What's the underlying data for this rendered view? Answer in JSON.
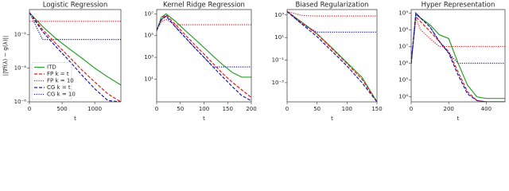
{
  "chart_data": [
    {
      "type": "line",
      "title": "Logistic Regression",
      "xlabel": "t",
      "ylabel": "||∇f(λ) − g(λ)||",
      "ylog": true,
      "legend": "lower left",
      "x": [
        0,
        200,
        400,
        600,
        800,
        1000,
        1200,
        1400
      ],
      "xlim": [
        0,
        1400
      ],
      "xticks": [
        0,
        500,
        1000
      ],
      "ylim": [
        1e-06,
        0.3
      ],
      "yticks": [
        {
          "value": 1e-06,
          "label": "10⁻⁶"
        },
        {
          "value": 0.0001,
          "label": "10⁻⁴"
        },
        {
          "value": 0.01,
          "label": "10⁻²"
        }
      ],
      "series": [
        {
          "name": "ITD",
          "color": "#2ca02c",
          "dash": "solid",
          "values": [
            0.2,
            0.03,
            0.006,
            0.0015,
            0.0004,
            0.0001,
            3e-05,
            1e-05
          ]
        },
        {
          "name": "FP k = t",
          "color": "#e41a1c",
          "dash": "dashed",
          "values": [
            0.2,
            0.02,
            0.003,
            0.0005,
            8e-05,
            1.5e-05,
            3e-06,
            1e-06
          ]
        },
        {
          "name": "FP k = 10",
          "color": "#e41a1c",
          "dash": "dotted",
          "values": [
            0.06,
            0.06,
            0.06,
            0.06,
            0.06,
            0.06,
            0.06,
            0.06
          ]
        },
        {
          "name": "CG k = t",
          "color": "#1a1aa6",
          "dash": "dashed",
          "values": [
            0.2,
            0.015,
            0.002,
            0.0003,
            4e-05,
            6e-06,
            1.2e-06,
            1e-06
          ]
        },
        {
          "name": "CG k = 10",
          "color": "#1a1aa6",
          "dash": "dotted",
          "values": [
            0.2,
            0.005,
            0.005,
            0.005,
            0.005,
            0.005,
            0.005,
            0.005
          ]
        }
      ]
    },
    {
      "type": "line",
      "title": "Kernel Ridge Regression",
      "xlabel": "t",
      "ylog": true,
      "x": [
        0,
        10,
        20,
        40,
        60,
        80,
        100,
        120,
        140,
        160,
        180,
        200
      ],
      "xlim": [
        0,
        200
      ],
      "xticks": [
        0,
        50,
        100,
        150,
        200
      ],
      "ylim": [
        0.08,
        25000000
      ],
      "yticks": [
        {
          "value": 10,
          "label": "10¹"
        },
        {
          "value": 1000,
          "label": "10³"
        },
        {
          "value": 100000,
          "label": "10⁵"
        },
        {
          "value": 10000000,
          "label": "10⁷"
        }
      ],
      "series": [
        {
          "color": "#2ca02c",
          "dash": "solid",
          "values": [
            300000,
            5000000,
            10000000,
            2000000,
            300000,
            50000,
            8000,
            1200,
            200,
            40,
            15,
            15
          ]
        },
        {
          "color": "#e41a1c",
          "dash": "dashed",
          "values": [
            300000,
            4000000,
            8000000,
            1000000,
            120000,
            15000,
            2000,
            250,
            30,
            5,
            1,
            0.2
          ]
        },
        {
          "color": "#e41a1c",
          "dash": "dotted",
          "values": [
            300000,
            2000000,
            3000000,
            1000000,
            1000000,
            1000000,
            1000000,
            1000000,
            1000000,
            1000000,
            1000000,
            1000000
          ]
        },
        {
          "color": "#1a1aa6",
          "dash": "dashed",
          "values": [
            300000,
            3000000,
            6000000,
            600000,
            70000,
            8000,
            1000,
            120,
            15,
            2,
            0.3,
            0.1
          ]
        },
        {
          "color": "#1a1aa6",
          "dash": "dotted",
          "values": [
            300000,
            3000000,
            6000000,
            600000,
            70000,
            8000,
            1000,
            130,
            130,
            130,
            130,
            130
          ]
        }
      ]
    },
    {
      "type": "line",
      "title": "Biased Regularization",
      "xlabel": "t",
      "ylog": true,
      "x": [
        0,
        25,
        50,
        75,
        100,
        125,
        150
      ],
      "xlim": [
        0,
        150
      ],
      "xticks": [
        0,
        50,
        100,
        150
      ],
      "ylim": [
        2e-05,
        3000
      ],
      "yticks": [
        {
          "value": 0.001,
          "label": "10⁻³"
        },
        {
          "value": 0.1,
          "label": "10⁻¹"
        },
        {
          "value": 10,
          "label": "10¹"
        },
        {
          "value": 1000,
          "label": "10³"
        }
      ],
      "series": [
        {
          "color": "#2ca02c",
          "dash": "solid",
          "values": [
            2000,
            220,
            22,
            1.2,
            0.06,
            0.003,
            2e-05
          ]
        },
        {
          "color": "#e41a1c",
          "dash": "dashed",
          "values": [
            2000,
            200,
            20,
            1,
            0.05,
            0.002,
            2e-05
          ]
        },
        {
          "color": "#e41a1c",
          "dash": "dotted",
          "values": [
            2000,
            900,
            800,
            800,
            800,
            800,
            800
          ]
        },
        {
          "color": "#1a1aa6",
          "dash": "dashed",
          "values": [
            2000,
            150,
            12,
            0.6,
            0.03,
            0.001,
            2e-05
          ]
        },
        {
          "color": "#1a1aa6",
          "dash": "dotted",
          "values": [
            2000,
            150,
            30,
            30,
            30,
            30,
            30
          ]
        }
      ]
    },
    {
      "type": "line",
      "title": "Hyper Representation",
      "xlabel": "t",
      "ylog": true,
      "x": [
        0,
        25,
        50,
        100,
        150,
        200,
        250,
        300,
        350,
        400,
        450,
        500
      ],
      "xlim": [
        0,
        500
      ],
      "xticks": [
        0,
        200,
        400
      ],
      "ylim": [
        5000,
        1600000000
      ],
      "yticks": [
        {
          "value": 10000,
          "label": "10⁴"
        },
        {
          "value": 100000,
          "label": "10⁵"
        },
        {
          "value": 1000000,
          "label": "10⁶"
        },
        {
          "value": 10000000,
          "label": "10⁷"
        },
        {
          "value": 100000000,
          "label": "10⁸"
        },
        {
          "value": 1000000000,
          "label": "10⁹"
        }
      ],
      "series": [
        {
          "color": "#2ca02c",
          "dash": "solid",
          "values": [
            1000000,
            800000000,
            500000000,
            200000000,
            50000000,
            30000000,
            1000000,
            50000,
            10000,
            8000,
            8000,
            8000
          ]
        },
        {
          "color": "#e41a1c",
          "dash": "dashed",
          "values": [
            1000000,
            600000000,
            300000000,
            80000000,
            20000000,
            5000000,
            300000,
            20000,
            6000,
            5000,
            5000,
            5000
          ]
        },
        {
          "color": "#e41a1c",
          "dash": "dotted",
          "values": [
            1000000,
            500000000,
            100000000,
            30000000,
            10000000,
            10000000,
            10000000,
            10000000,
            10000000,
            10000000,
            10000000,
            10000000
          ]
        },
        {
          "color": "#1a1aa6",
          "dash": "dashed",
          "values": [
            1000000,
            1000000000,
            500000000,
            150000000,
            20000000,
            4000000,
            200000,
            15000,
            6000,
            5000,
            5000,
            5000
          ]
        },
        {
          "color": "#1a1aa6",
          "dash": "dotted",
          "values": [
            1000000,
            1000000000,
            500000000,
            150000000,
            20000000,
            4000000,
            1000000,
            1000000,
            1000000,
            1000000,
            1000000,
            1000000
          ]
        }
      ]
    }
  ]
}
